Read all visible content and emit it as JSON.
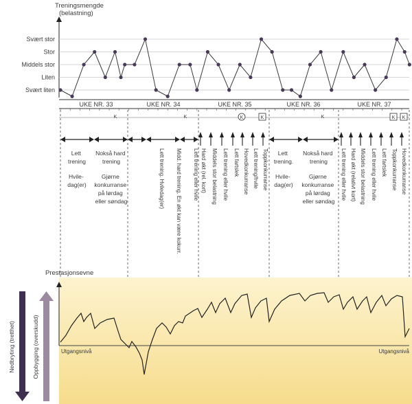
{
  "load_chart": {
    "title_line1": "Treningsmengde",
    "title_line2": "(belastning)",
    "levels": [
      "Svært stor",
      "Stor",
      "Middels stor",
      "Liten",
      "Svært liten"
    ],
    "series": [
      {
        "x": 0,
        "y": 1
      },
      {
        "x": 1.2,
        "y": 0.5
      },
      {
        "x": 2.4,
        "y": 3
      },
      {
        "x": 3.5,
        "y": 4
      },
      {
        "x": 4.6,
        "y": 2
      },
      {
        "x": 5.6,
        "y": 4
      },
      {
        "x": 6.2,
        "y": 2
      },
      {
        "x": 6.6,
        "y": 3
      },
      {
        "x": 7.6,
        "y": 3
      },
      {
        "x": 8.7,
        "y": 5
      },
      {
        "x": 9.8,
        "y": 1
      },
      {
        "x": 11,
        "y": 0.5
      },
      {
        "x": 12.2,
        "y": 3
      },
      {
        "x": 13.3,
        "y": 3
      },
      {
        "x": 14,
        "y": 1
      },
      {
        "x": 15.1,
        "y": 4
      },
      {
        "x": 16.2,
        "y": 3
      },
      {
        "x": 17.3,
        "y": 1
      },
      {
        "x": 18.4,
        "y": 3
      },
      {
        "x": 19.5,
        "y": 2
      },
      {
        "x": 20.6,
        "y": 5
      },
      {
        "x": 21.7,
        "y": 4
      },
      {
        "x": 22.8,
        "y": 1
      },
      {
        "x": 23.7,
        "y": 1
      },
      {
        "x": 24.6,
        "y": 0.5
      },
      {
        "x": 25.6,
        "y": 3
      },
      {
        "x": 26.7,
        "y": 4
      },
      {
        "x": 27.8,
        "y": 1
      },
      {
        "x": 29,
        "y": 4
      },
      {
        "x": 30.1,
        "y": 2
      },
      {
        "x": 31.2,
        "y": 3
      },
      {
        "x": 32.3,
        "y": 1
      },
      {
        "x": 33.4,
        "y": 2
      },
      {
        "x": 34.5,
        "y": 5
      },
      {
        "x": 35.3,
        "y": 4
      },
      {
        "x": 35.8,
        "y": 3
      }
    ]
  },
  "weeks": [
    {
      "label": "UKE NR. 33",
      "markers": [
        "K"
      ]
    },
    {
      "label": "UKE NR. 34",
      "markers": [
        "K"
      ]
    },
    {
      "label": "UKE NR. 35",
      "markers": [
        "K",
        "K"
      ]
    },
    {
      "label": "UKE NR. 36",
      "markers": [
        "K"
      ]
    },
    {
      "label": "UKE NR. 37",
      "markers": [
        "K",
        "K"
      ]
    }
  ],
  "week33_notes": [
    [
      "Lett",
      "trening"
    ],
    [
      "Hvile-",
      "dag(er)"
    ],
    [
      "Nokså hard",
      "trening"
    ],
    [
      "Gjørne",
      "konkurranse",
      "på lørdag",
      "eller søndag"
    ]
  ],
  "week34_notes": [
    "Lett trening. Hviledag(er)",
    "Midd. hard trening. En økt kan være kokurr.",
    "Lett trening eller hvile"
  ],
  "week35_notes": [
    "Hard økt (rel. kort)",
    "Middels stor belastning",
    "Lett trening eller hvile",
    "Lett fartslek",
    "Hovedkonkurranse",
    "Lett trening/hvile",
    "Toppkonkurranse"
  ],
  "week36_notes": [
    [
      "Lett",
      "trening."
    ],
    [
      "Hvile-",
      "dag(er)"
    ],
    [
      "Nokså hard",
      "trening"
    ],
    [
      "Gjørne",
      "konkurranse",
      "på lørdag",
      "eller søndag"
    ]
  ],
  "week37_notes": [
    "Lett trening eller hvile",
    "Hard økt (relativt kort)",
    "Middels stor belastning",
    "Lett trening eller hvile",
    "Lett fartslek",
    "Toppkonkurranse",
    "Hovedkonkurranse"
  ],
  "performance": {
    "title": "Prestasjonsevne",
    "baseline_left": "Utgangsnivå",
    "baseline_right": "Utgangsnivå",
    "side_left": "Nedbryting (tretthet)",
    "side_right": "Oppbygging (overskudd)"
  },
  "colors": {
    "line": "#3a3a3a",
    "dot": "#4a3a5a",
    "perf_bg_top": "#fdf3cf",
    "perf_bg_bottom": "#f6dc8c",
    "arrow_down": "#3f3050",
    "arrow_up": "#9b8aa0"
  }
}
